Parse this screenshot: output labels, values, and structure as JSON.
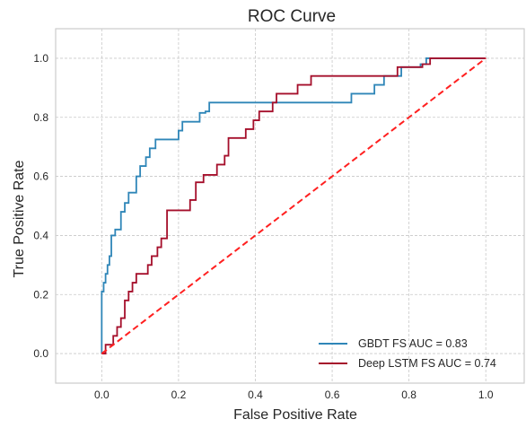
{
  "chart_data": {
    "type": "line",
    "title": "ROC Curve",
    "xlabel": "False Positive Rate",
    "ylabel": "True Positive Rate",
    "xlim": [
      -0.12,
      1.1
    ],
    "ylim": [
      -0.1,
      1.1
    ],
    "xticks": [
      "0.0",
      "0.2",
      "0.4",
      "0.6",
      "0.8",
      "1.0"
    ],
    "yticks": [
      "0.0",
      "0.2",
      "0.4",
      "0.6",
      "0.8",
      "1.0"
    ],
    "grid": true,
    "legend_position": "bottom-right",
    "series": [
      {
        "name": "GBDT FS AUC = 0.83",
        "color": "#2f86b8",
        "style": "solid",
        "x": [
          0.0,
          0.0,
          0.005,
          0.005,
          0.01,
          0.01,
          0.015,
          0.015,
          0.02,
          0.02,
          0.025,
          0.025,
          0.035,
          0.035,
          0.05,
          0.05,
          0.06,
          0.06,
          0.07,
          0.07,
          0.09,
          0.09,
          0.1,
          0.1,
          0.115,
          0.115,
          0.125,
          0.125,
          0.14,
          0.14,
          0.2,
          0.2,
          0.21,
          0.21,
          0.255,
          0.255,
          0.27,
          0.27,
          0.28,
          0.28,
          0.6,
          0.65,
          0.65,
          0.71,
          0.71,
          0.735,
          0.735,
          0.78,
          0.78,
          0.83,
          0.83,
          0.845,
          0.845,
          0.86,
          0.86,
          1.0
        ],
        "y": [
          0.0,
          0.21,
          0.21,
          0.24,
          0.24,
          0.27,
          0.27,
          0.3,
          0.3,
          0.33,
          0.33,
          0.4,
          0.4,
          0.42,
          0.42,
          0.48,
          0.48,
          0.51,
          0.51,
          0.545,
          0.545,
          0.6,
          0.6,
          0.635,
          0.635,
          0.665,
          0.665,
          0.695,
          0.695,
          0.725,
          0.725,
          0.755,
          0.755,
          0.785,
          0.785,
          0.815,
          0.815,
          0.82,
          0.82,
          0.85,
          0.85,
          0.85,
          0.88,
          0.88,
          0.91,
          0.91,
          0.94,
          0.94,
          0.97,
          0.97,
          0.98,
          0.98,
          1.0,
          1.0,
          1.0,
          1.0
        ]
      },
      {
        "name": "Deep LSTM FS AUC = 0.74",
        "color": "#a50f2b",
        "style": "solid",
        "x": [
          0.0,
          0.01,
          0.01,
          0.03,
          0.03,
          0.04,
          0.04,
          0.05,
          0.05,
          0.06,
          0.06,
          0.07,
          0.07,
          0.08,
          0.08,
          0.09,
          0.09,
          0.12,
          0.12,
          0.13,
          0.13,
          0.145,
          0.145,
          0.155,
          0.155,
          0.17,
          0.17,
          0.18,
          0.18,
          0.23,
          0.23,
          0.245,
          0.245,
          0.265,
          0.265,
          0.3,
          0.3,
          0.32,
          0.32,
          0.33,
          0.33,
          0.375,
          0.375,
          0.395,
          0.395,
          0.41,
          0.41,
          0.445,
          0.445,
          0.455,
          0.455,
          0.51,
          0.51,
          0.545,
          0.545,
          0.6,
          0.6,
          0.77,
          0.77,
          0.835,
          0.835,
          0.855,
          0.855,
          1.0
        ],
        "y": [
          0.0,
          0.0,
          0.03,
          0.03,
          0.06,
          0.06,
          0.09,
          0.09,
          0.12,
          0.12,
          0.18,
          0.18,
          0.21,
          0.21,
          0.24,
          0.24,
          0.27,
          0.27,
          0.3,
          0.3,
          0.33,
          0.33,
          0.36,
          0.36,
          0.39,
          0.39,
          0.485,
          0.485,
          0.485,
          0.485,
          0.52,
          0.52,
          0.58,
          0.58,
          0.605,
          0.605,
          0.64,
          0.64,
          0.67,
          0.67,
          0.73,
          0.73,
          0.76,
          0.76,
          0.79,
          0.79,
          0.82,
          0.82,
          0.85,
          0.85,
          0.88,
          0.88,
          0.91,
          0.91,
          0.94,
          0.94,
          0.94,
          0.94,
          0.97,
          0.97,
          0.98,
          0.98,
          1.0,
          1.0
        ]
      },
      {
        "name": "",
        "color": "#ff2020",
        "style": "dashed",
        "x": [
          0.0,
          1.0
        ],
        "y": [
          0.0,
          1.0
        ]
      }
    ]
  }
}
